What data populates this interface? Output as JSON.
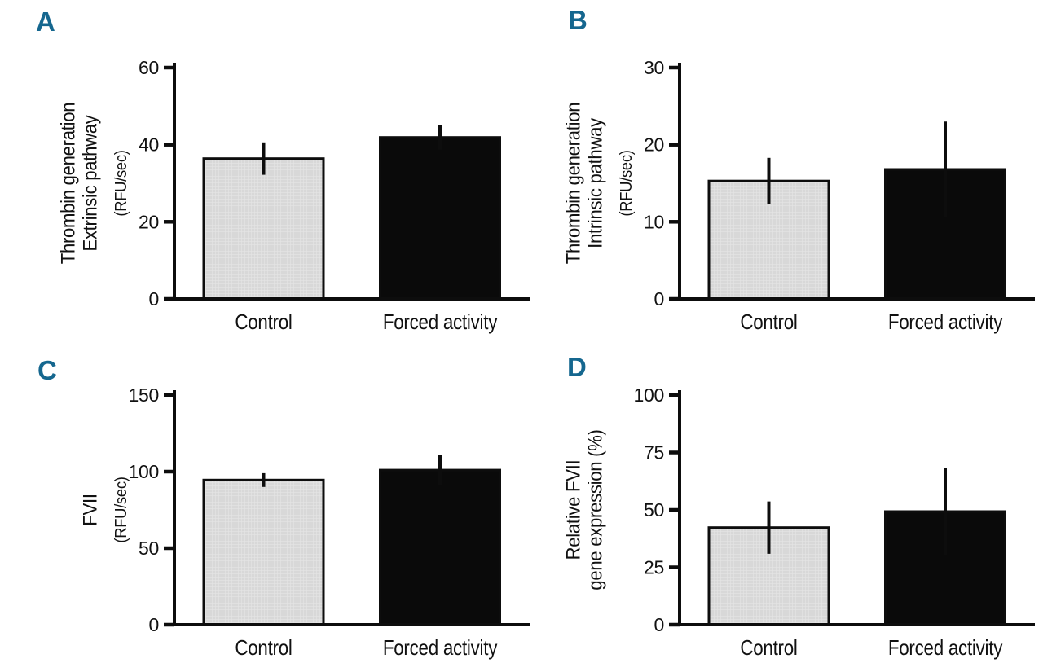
{
  "figure": {
    "background": "#ffffff",
    "panel_label_color": "#15678f",
    "axis_color": "#0d0d0d",
    "text_color": "#111111",
    "gray_bar_color": "#d8d8d8",
    "black_bar_color": "#0a0a0a"
  },
  "chart_data": [
    {
      "panel": "A",
      "type": "bar",
      "ylabel_lines": [
        "Thrombin generation",
        "Extrinsic pathway"
      ],
      "ylabel_unit": "(RFU/sec)",
      "categories": [
        "Control",
        "Forced activity"
      ],
      "values": [
        36.4,
        41.9
      ],
      "errors": [
        4.2,
        3.2
      ],
      "ylim": [
        0,
        60
      ],
      "yticks": [
        0,
        20,
        40,
        60
      ],
      "bar_colors": [
        "#d8d8d8",
        "#0a0a0a"
      ],
      "grid": false,
      "legend": "none"
    },
    {
      "panel": "B",
      "type": "bar",
      "ylabel_lines": [
        "Thrombin generation",
        "Intrinsic pathway"
      ],
      "ylabel_unit": "(RFU/sec)",
      "categories": [
        "Control",
        "Forced activity"
      ],
      "values": [
        15.3,
        16.8
      ],
      "errors": [
        3.0,
        6.2
      ],
      "ylim": [
        0,
        30
      ],
      "yticks": [
        0,
        10,
        20,
        30
      ],
      "bar_colors": [
        "#d8d8d8",
        "#0a0a0a"
      ],
      "grid": false,
      "legend": "none"
    },
    {
      "panel": "C",
      "type": "bar",
      "ylabel_lines": [
        "FVII"
      ],
      "ylabel_unit": "(RFU/sec)",
      "categories": [
        "Control",
        "Forced activity"
      ],
      "values": [
        94.5,
        101
      ],
      "errors": [
        4.5,
        10
      ],
      "ylim": [
        0,
        150
      ],
      "yticks": [
        0,
        50,
        100,
        150
      ],
      "bar_colors": [
        "#d8d8d8",
        "#0a0a0a"
      ],
      "grid": false,
      "legend": "none"
    },
    {
      "panel": "D",
      "type": "bar",
      "ylabel_lines": [
        "Relative FVII",
        "gene expression (%)"
      ],
      "ylabel_unit": "",
      "categories": [
        "Control",
        "Forced activity"
      ],
      "values": [
        42.3,
        49.3
      ],
      "errors": [
        11.4,
        18.9
      ],
      "ylim": [
        0,
        100
      ],
      "yticks": [
        0,
        25,
        50,
        75,
        100
      ],
      "bar_colors": [
        "#d8d8d8",
        "#0a0a0a"
      ],
      "grid": false,
      "legend": "none"
    }
  ]
}
